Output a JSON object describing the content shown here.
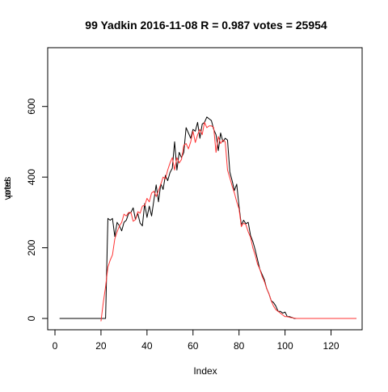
{
  "chart_data": {
    "type": "line",
    "title": "99 Yadkin 2016-11-08 R = 0.987 votes = 25954",
    "xlabel": "Index",
    "ylabel": "votes",
    "ylabel_overlay": "pred",
    "xlim": [
      0,
      130
    ],
    "ylim": [
      0,
      700
    ],
    "x_ticks": [
      "0",
      "20",
      "40",
      "60",
      "80",
      "100",
      "120"
    ],
    "y_ticks": [
      "0",
      "200",
      "400",
      "600"
    ],
    "grid": false,
    "legend": "none",
    "series": [
      {
        "color": "#000000",
        "x_start": 2,
        "values": [
          0,
          0,
          0,
          0,
          0,
          0,
          0,
          0,
          0,
          0,
          0,
          0,
          0,
          0,
          0,
          0,
          0,
          0,
          0,
          0,
          0,
          283,
          278,
          283,
          232,
          272,
          262,
          248,
          272,
          278,
          297,
          300,
          313,
          280,
          297,
          270,
          262,
          325,
          286,
          318,
          290,
          335,
          378,
          330,
          381,
          365,
          405,
          390,
          413,
          425,
          500,
          420,
          470,
          455,
          470,
          540,
          525,
          510,
          535,
          530,
          555,
          510,
          550,
          555,
          570,
          565,
          560,
          535,
          520,
          475,
          525,
          500,
          510,
          505,
          415,
          390,
          362,
          380,
          318,
          265,
          278,
          268,
          272,
          235,
          218,
          195,
          168,
          140,
          125,
          110,
          85,
          70,
          50,
          45,
          35,
          20,
          20,
          15,
          18,
          5,
          5,
          3,
          0,
          0,
          0,
          0,
          0,
          0,
          0,
          0,
          0,
          0,
          0,
          0,
          0,
          0,
          0,
          0,
          0,
          0,
          0,
          0,
          0,
          0,
          0,
          0,
          0,
          0,
          0,
          0
        ]
      },
      {
        "color": "#ff3333",
        "x_start": 20,
        "values": [
          -8,
          45,
          90,
          145,
          165,
          180,
          225,
          245,
          262,
          272,
          295,
          290,
          300,
          300,
          275,
          280,
          302,
          298,
          318,
          320,
          340,
          330,
          355,
          360,
          345,
          362,
          380,
          400,
          395,
          420,
          440,
          455,
          420,
          455,
          440,
          450,
          490,
          495,
          480,
          500,
          530,
          498,
          520,
          535,
          520,
          555,
          540,
          545,
          545,
          540,
          470,
          515,
          495,
          505,
          500,
          420,
          398,
          375,
          355,
          330,
          310,
          260,
          270,
          265,
          245,
          230,
          200,
          180,
          155,
          140,
          120,
          105,
          85,
          70,
          50,
          35,
          25,
          20,
          15,
          10,
          5,
          5,
          3,
          2,
          1,
          0,
          0,
          0,
          0,
          0,
          0,
          0,
          0,
          0,
          0,
          0,
          0,
          0,
          0,
          0,
          0,
          0,
          0,
          0,
          0,
          0,
          0,
          0,
          0,
          0,
          0,
          0
        ]
      }
    ]
  }
}
